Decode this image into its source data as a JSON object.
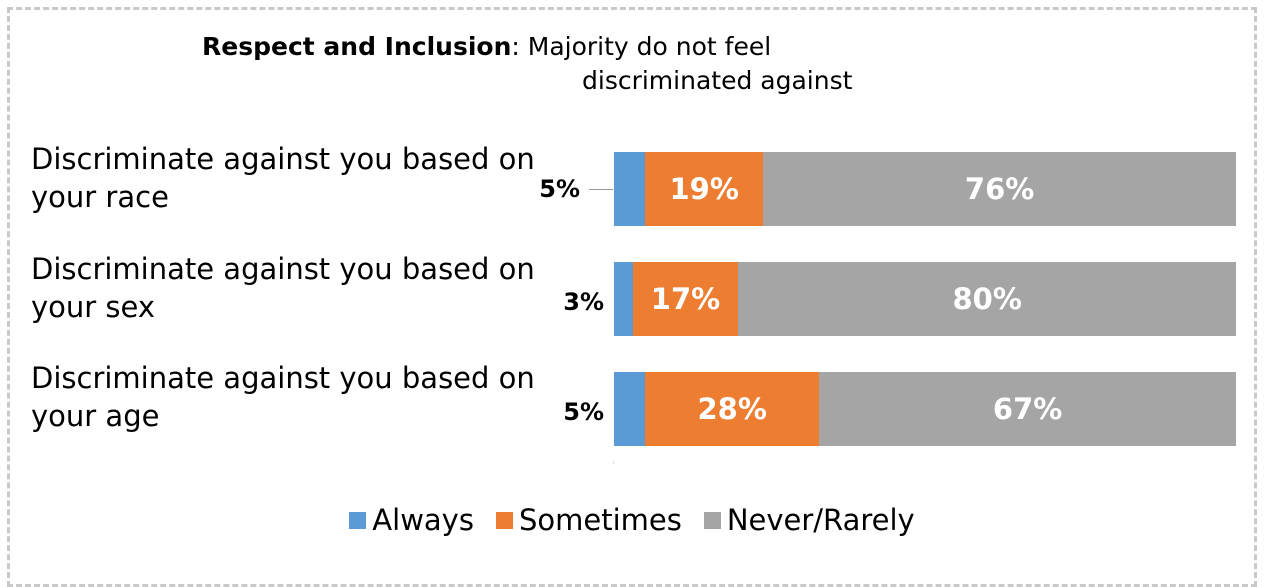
{
  "title": {
    "bold": "Respect and Inclusion",
    "rest_line1": ": Majority do not feel",
    "rest_line2": "discriminated against"
  },
  "chart_data": {
    "type": "bar",
    "orientation": "horizontal",
    "stacked": true,
    "categories": [
      "Discriminate against you based on your race",
      "Discriminate against you based on your sex",
      "Discriminate against you based on your age"
    ],
    "category_lines": [
      [
        "Discriminate against you based on",
        "your race"
      ],
      [
        "Discriminate against you based on",
        "your sex"
      ],
      [
        "Discriminate against you based on",
        "your age"
      ]
    ],
    "series": [
      {
        "name": "Always",
        "color": "#5b9bd5",
        "values": [
          5,
          3,
          5
        ],
        "labels": [
          "5%",
          "3%",
          "5%"
        ]
      },
      {
        "name": "Sometimes",
        "color": "#ed7d31",
        "values": [
          19,
          17,
          28
        ],
        "labels": [
          "19%",
          "17%",
          "28%"
        ]
      },
      {
        "name": "Never/Rarely",
        "color": "#a5a5a5",
        "values": [
          76,
          80,
          67
        ],
        "labels": [
          "76%",
          "80%",
          "67%"
        ]
      }
    ],
    "xlim": [
      0,
      100
    ],
    "legend": "bottom"
  }
}
